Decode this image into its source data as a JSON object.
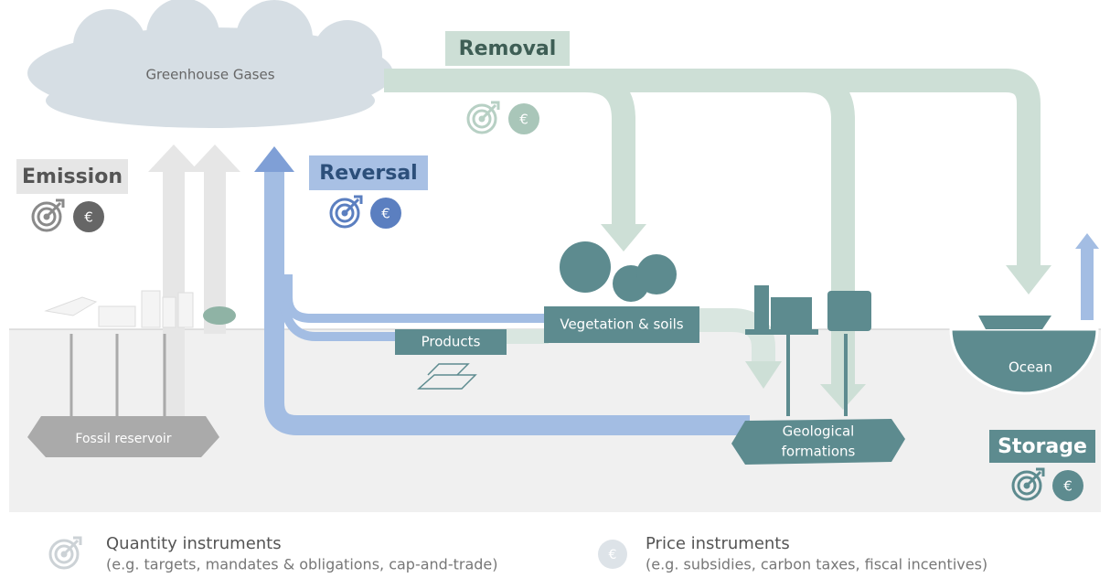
{
  "cloud": {
    "label": "Greenhouse Gases"
  },
  "flows": {
    "removal": "Removal",
    "emission": "Emission",
    "reversal": "Reversal",
    "storage": "Storage"
  },
  "nodes": {
    "products": "Products",
    "vegetation": "Vegetation & soils",
    "geological": [
      "Geological",
      "formations"
    ],
    "ocean": "Ocean",
    "fossil": "Fossil reservoir"
  },
  "icons": {
    "price_symbol": "€"
  },
  "legend": {
    "quantity": {
      "title": "Quantity instruments",
      "note": "(e.g. targets, mandates & obligations, cap-and-trade)"
    },
    "price": {
      "title": "Price instruments",
      "note": "(e.g. subsidies, carbon taxes, fiscal incentives)"
    }
  }
}
